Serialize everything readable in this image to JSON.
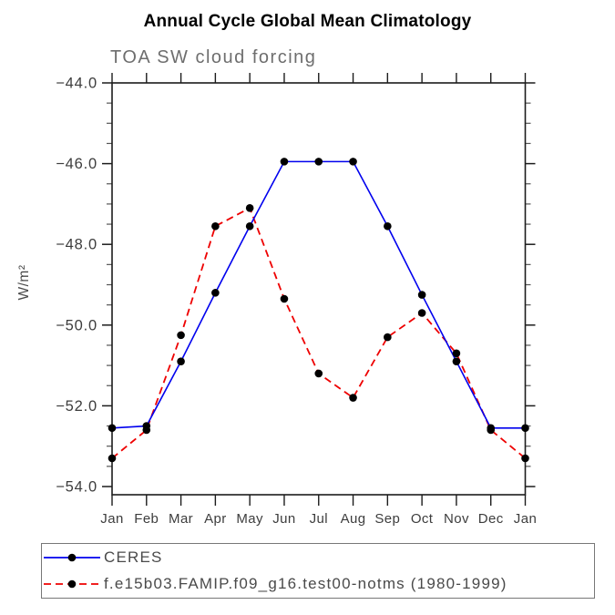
{
  "chart_data": {
    "type": "line",
    "title": "Annual Cycle Global Mean Climatology",
    "subtitle": "TOA SW cloud forcing",
    "xlabel": "",
    "ylabel": "W/m²",
    "categories": [
      "Jan",
      "Feb",
      "Mar",
      "Apr",
      "May",
      "Jun",
      "Jul",
      "Aug",
      "Sep",
      "Oct",
      "Nov",
      "Dec",
      "Jan"
    ],
    "series": [
      {
        "name": "CERES",
        "color": "#0000ee",
        "dash": "solid",
        "marker": "black-dot",
        "values": [
          -52.55,
          -52.5,
          -50.9,
          -49.2,
          -47.55,
          -45.95,
          -45.95,
          -45.95,
          -47.55,
          -49.25,
          -50.9,
          -52.55,
          -52.55
        ]
      },
      {
        "name": "f.e15b03.FAMIP.f09_g16.test00-notms (1980-1999)",
        "color": "#ee0000",
        "dash": "dashed",
        "marker": "black-dot",
        "values": [
          -53.3,
          -52.6,
          -50.25,
          -47.55,
          -47.1,
          -49.35,
          -51.2,
          -51.8,
          -50.3,
          -49.7,
          -50.7,
          -52.6,
          -53.3
        ]
      }
    ],
    "ylim": [
      -54.2,
      -44.0
    ],
    "yticks_major": [
      -44,
      -46,
      -48,
      -50,
      -52,
      -54
    ],
    "ytick_labels": [
      "−44.0",
      "−46.0",
      "−48.0",
      "−50.0",
      "−52.0",
      "−54.0"
    ],
    "yminor_step": 0.5,
    "grid": "off",
    "legend_position": "bottom-left",
    "marker_color": "#000000",
    "axis_color": "#1c1c1c"
  }
}
